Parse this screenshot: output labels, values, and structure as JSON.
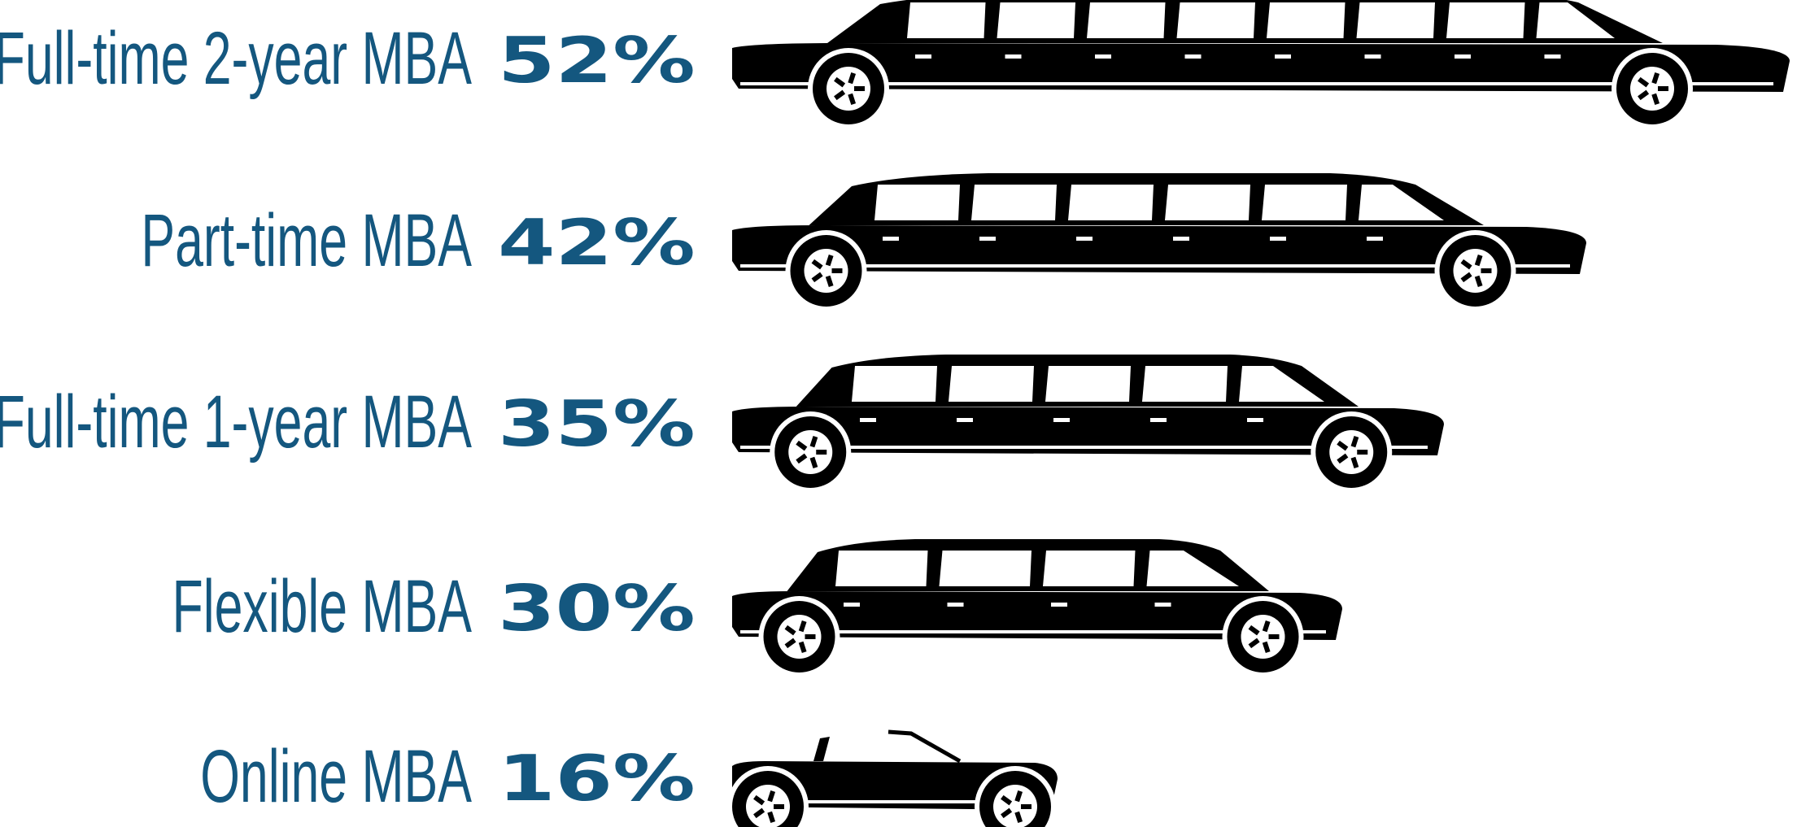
{
  "chart_data": {
    "type": "bar",
    "orientation": "horizontal",
    "categories": [
      "Full-time 2-year MBA",
      "Part-time MBA",
      "Full-time 1-year MBA",
      "Flexible MBA",
      "Online MBA"
    ],
    "values": [
      52,
      42,
      35,
      30,
      16
    ],
    "value_labels": [
      "52%",
      "42%",
      "35%",
      "30%",
      "16%"
    ],
    "color": "#000000",
    "label_color": "#14577f"
  }
}
